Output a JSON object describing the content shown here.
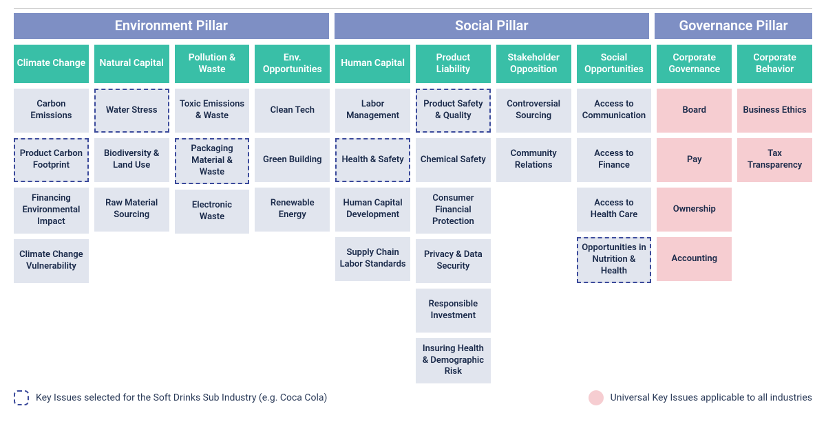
{
  "colors": {
    "pillar_header_bg": "#7e8fc4",
    "col_header_bg": "#39bfa7",
    "cell_default_bg": "#e1e5ee",
    "cell_universal_bg": "#f6cdd1",
    "cell_text": "#1a2a4a",
    "legend_text": "#2a3a58",
    "dashed_border": "#3b4a9b"
  },
  "pillars": [
    {
      "label": "Environment Pillar",
      "span": 4
    },
    {
      "label": "Social Pillar",
      "span": 4
    },
    {
      "label": "Governance Pillar",
      "span": 2
    }
  ],
  "columns": [
    {
      "header": "Climate Change",
      "cells": [
        {
          "label": "Carbon Emissions",
          "selected": false,
          "universal": false
        },
        {
          "label": "Product Carbon Footprint",
          "selected": true,
          "universal": false
        },
        {
          "label": "Financing Environmental Impact",
          "selected": false,
          "universal": false
        },
        {
          "label": "Climate Change Vulnerability",
          "selected": false,
          "universal": false
        }
      ]
    },
    {
      "header": "Natural Capital",
      "cells": [
        {
          "label": "Water Stress",
          "selected": true,
          "universal": false
        },
        {
          "label": "Biodiversity & Land Use",
          "selected": false,
          "universal": false
        },
        {
          "label": "Raw Material Sourcing",
          "selected": false,
          "universal": false
        }
      ]
    },
    {
      "header": "Pollution & Waste",
      "cells": [
        {
          "label": "Toxic Emissions & Waste",
          "selected": false,
          "universal": false
        },
        {
          "label": "Packaging Material & Waste",
          "selected": true,
          "universal": false
        },
        {
          "label": "Electronic Waste",
          "selected": false,
          "universal": false
        }
      ]
    },
    {
      "header": "Env. Opportunities",
      "cells": [
        {
          "label": "Clean Tech",
          "selected": false,
          "universal": false
        },
        {
          "label": "Green Building",
          "selected": false,
          "universal": false
        },
        {
          "label": "Renewable Energy",
          "selected": false,
          "universal": false
        }
      ]
    },
    {
      "header": "Human Capital",
      "cells": [
        {
          "label": "Labor Management",
          "selected": false,
          "universal": false
        },
        {
          "label": "Health & Safety",
          "selected": true,
          "universal": false
        },
        {
          "label": "Human Capital Development",
          "selected": false,
          "universal": false
        },
        {
          "label": "Supply Chain Labor Standards",
          "selected": false,
          "universal": false
        }
      ]
    },
    {
      "header": "Product Liability",
      "cells": [
        {
          "label": "Product Safety & Quality",
          "selected": true,
          "universal": false
        },
        {
          "label": "Chemical Safety",
          "selected": false,
          "universal": false
        },
        {
          "label": "Consumer Financial Protection",
          "selected": false,
          "universal": false
        },
        {
          "label": "Privacy & Data Security",
          "selected": false,
          "universal": false
        },
        {
          "label": "Responsible Investment",
          "selected": false,
          "universal": false
        },
        {
          "label": "Insuring Health & Demographic Risk",
          "selected": false,
          "universal": false
        }
      ]
    },
    {
      "header": "Stakeholder Opposition",
      "cells": [
        {
          "label": "Controversial Sourcing",
          "selected": false,
          "universal": false
        },
        {
          "label": "Community Relations",
          "selected": false,
          "universal": false
        }
      ]
    },
    {
      "header": "Social Opportunities",
      "cells": [
        {
          "label": "Access to Communication",
          "selected": false,
          "universal": false
        },
        {
          "label": "Access to Finance",
          "selected": false,
          "universal": false
        },
        {
          "label": "Access to Health Care",
          "selected": false,
          "universal": false
        },
        {
          "label": "Opportunities in Nutrition & Health",
          "selected": true,
          "universal": false
        }
      ]
    },
    {
      "header": "Corporate Governance",
      "cells": [
        {
          "label": "Board",
          "selected": false,
          "universal": true
        },
        {
          "label": "Pay",
          "selected": false,
          "universal": true
        },
        {
          "label": "Ownership",
          "selected": false,
          "universal": true
        },
        {
          "label": "Accounting",
          "selected": false,
          "universal": true
        }
      ]
    },
    {
      "header": "Corporate Behavior",
      "cells": [
        {
          "label": "Business Ethics",
          "selected": false,
          "universal": true
        },
        {
          "label": "Tax Transparency",
          "selected": false,
          "universal": true
        }
      ]
    }
  ],
  "legend": {
    "selected_label": "Key Issues selected for the Soft Drinks Sub Industry (e.g. Coca Cola)",
    "universal_label": "Universal Key Issues applicable to all industries"
  }
}
